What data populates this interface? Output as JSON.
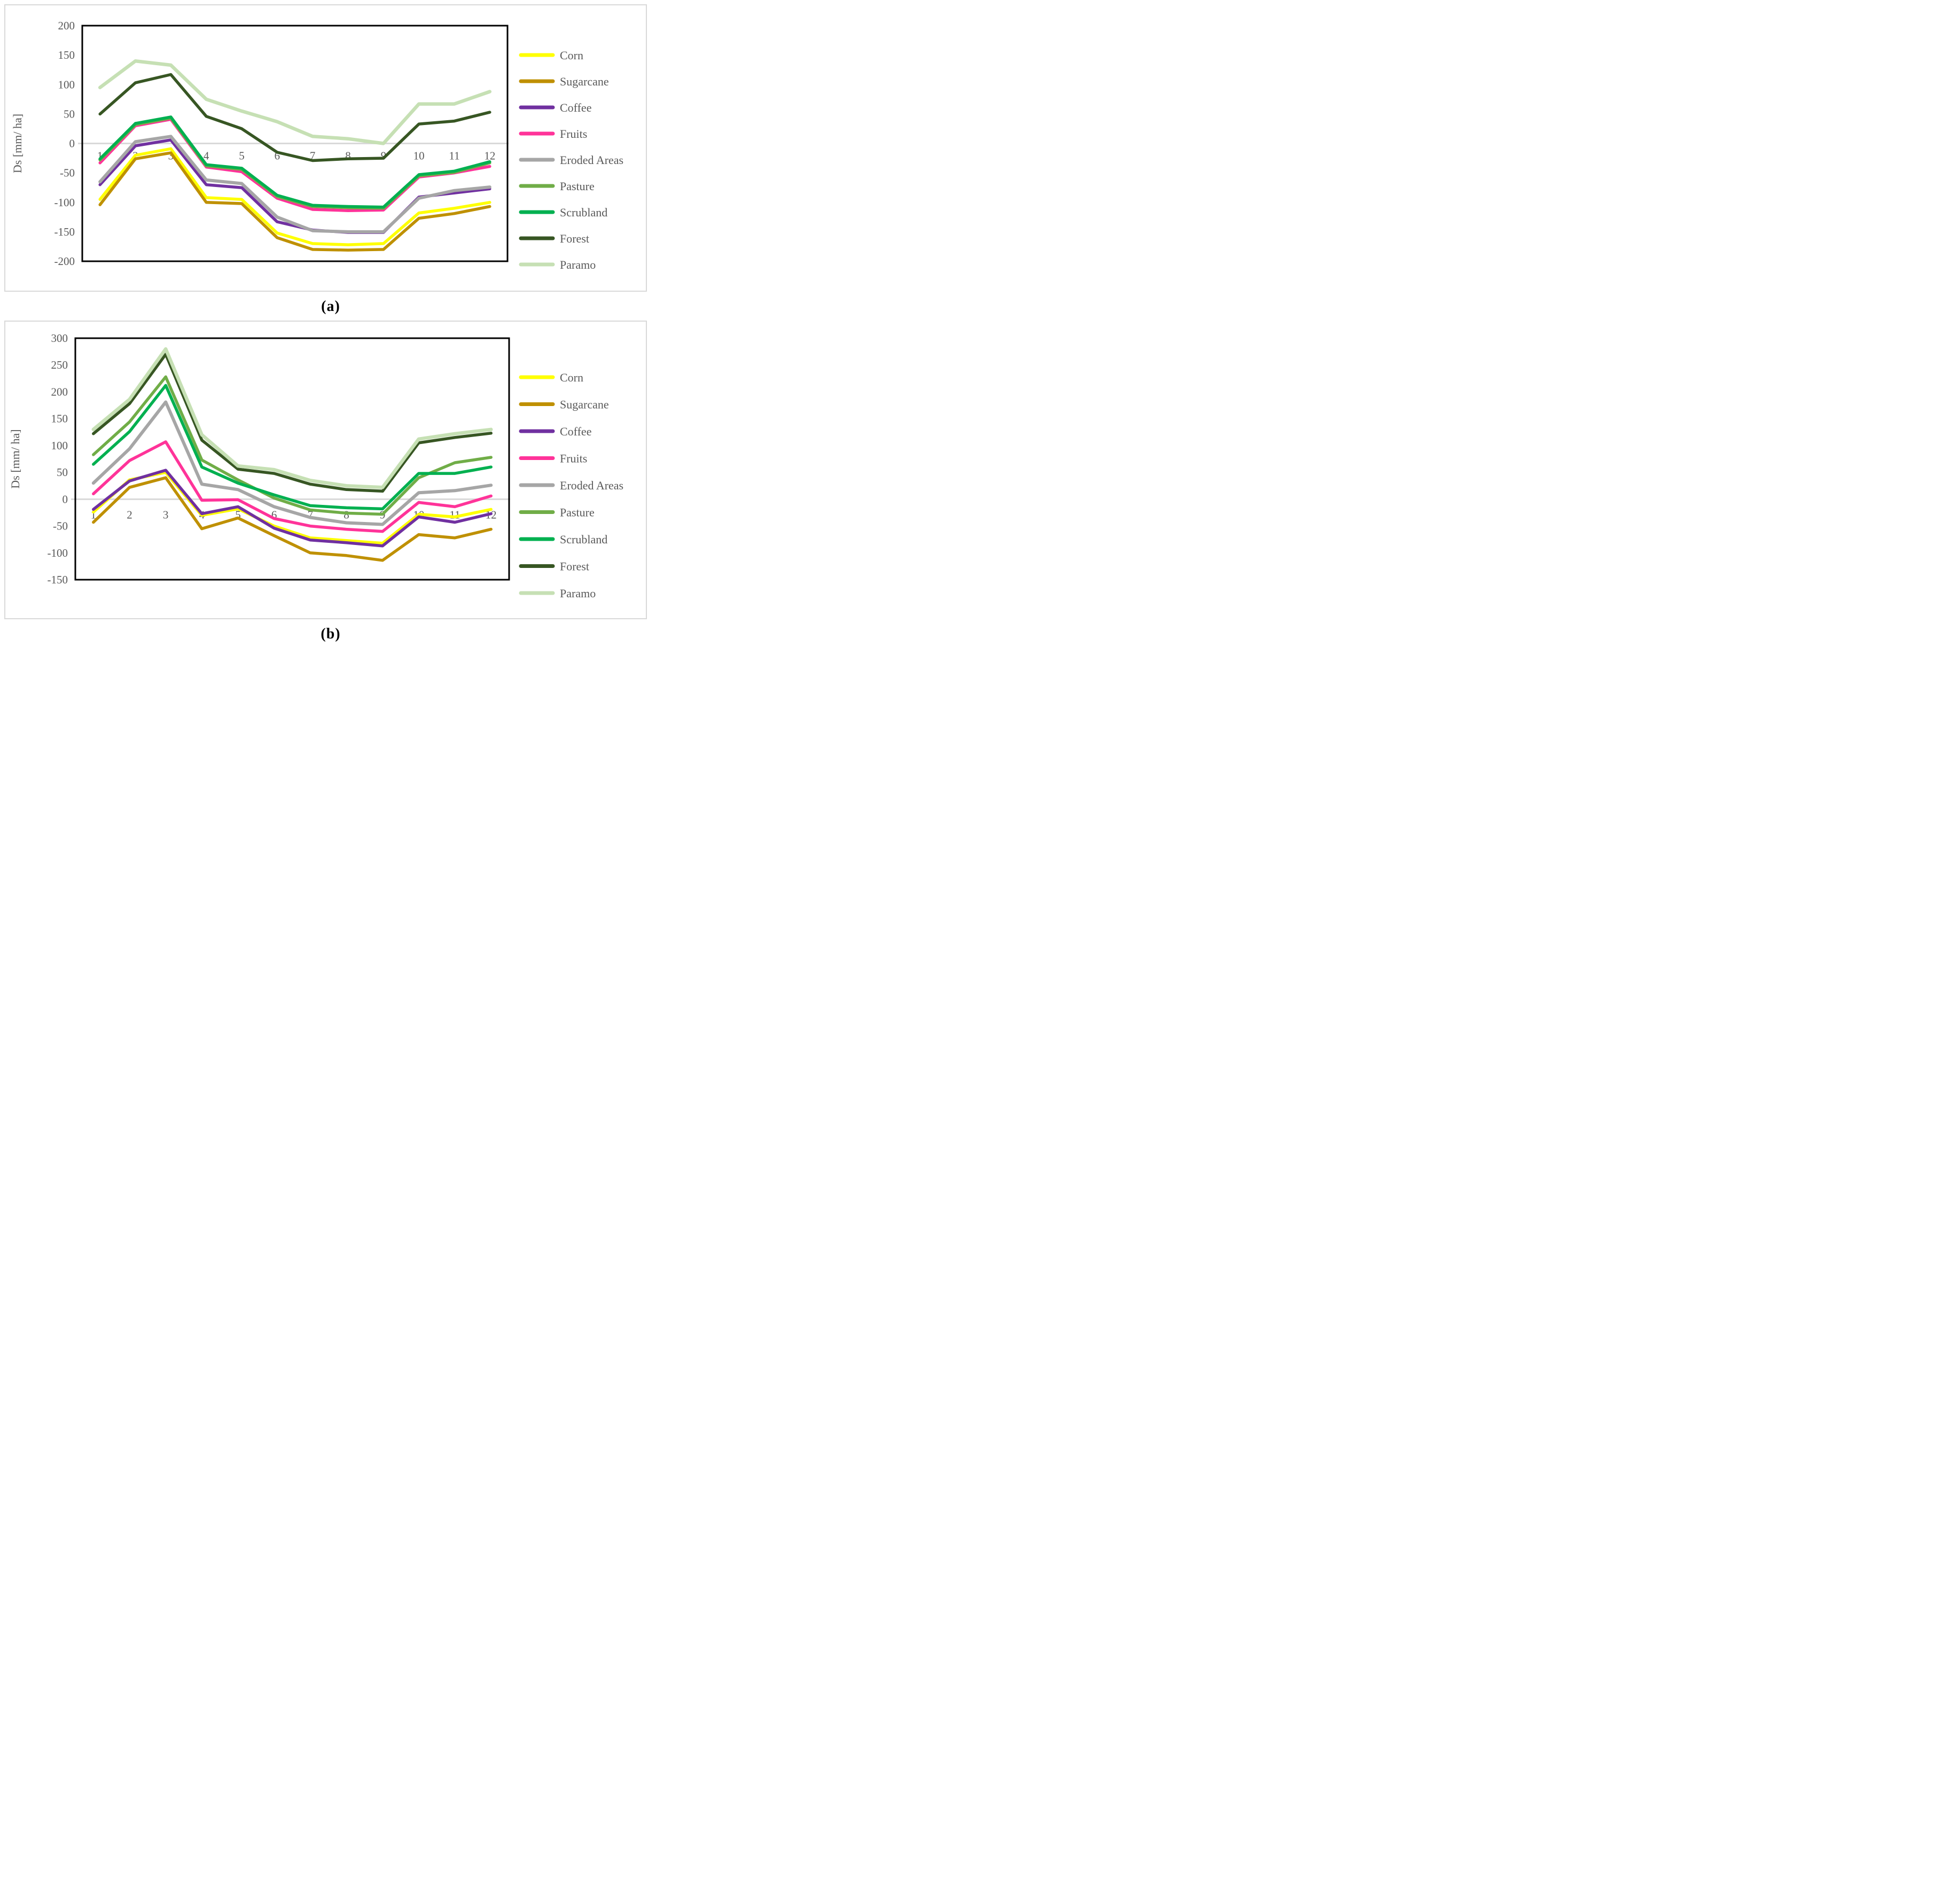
{
  "captions": {
    "a": "(a)",
    "b": "(b)"
  },
  "colors": {
    "plot_border": "#000000",
    "zero_gridline": "#d9d9d9",
    "panel_border": "#d9d9d9",
    "axis_text": "#595959",
    "caption_text": "#000000"
  },
  "chart_data": [
    {
      "id": "a",
      "type": "line",
      "ylabel": "Ds [mm/ ha]",
      "x": [
        1,
        2,
        3,
        4,
        5,
        6,
        7,
        8,
        9,
        10,
        11,
        12
      ],
      "ylim": [
        -200,
        200
      ],
      "yticks": [
        200,
        150,
        100,
        50,
        0,
        -50,
        -100,
        -150,
        -200
      ],
      "grid": "zero-line-only",
      "legend_position": "right",
      "series": [
        {
          "name": "Corn",
          "color": "#ffff00",
          "values": [
            -95,
            -20,
            -9,
            -92,
            -95,
            -152,
            -170,
            -172,
            -170,
            -118,
            -110,
            -100
          ]
        },
        {
          "name": "Sugarcane",
          "color": "#bf9000",
          "values": [
            -104,
            -26,
            -16,
            -100,
            -102,
            -160,
            -180,
            -181,
            -180,
            -127,
            -119,
            -107
          ]
        },
        {
          "name": "Coffee",
          "color": "#7030a0",
          "values": [
            -70,
            -4,
            6,
            -70,
            -75,
            -133,
            -147,
            -151,
            -151,
            -91,
            -84,
            -77
          ]
        },
        {
          "name": "Fruits",
          "color": "#ff3399",
          "values": [
            -33,
            30,
            41,
            -40,
            -48,
            -93,
            -112,
            -114,
            -113,
            -57,
            -50,
            -39
          ]
        },
        {
          "name": "Eroded Areas",
          "color": "#a6a6a6",
          "values": [
            -65,
            3,
            12,
            -62,
            -68,
            -125,
            -148,
            -150,
            -150,
            -93,
            -80,
            -74
          ]
        },
        {
          "name": "Pasture",
          "color": "#70ad47",
          "values": [
            -28,
            32,
            43,
            -38,
            -44,
            -90,
            -107,
            -109,
            -110,
            -55,
            -49,
            -33
          ]
        },
        {
          "name": "Scrubland",
          "color": "#00b050",
          "values": [
            -26,
            34,
            45,
            -36,
            -42,
            -88,
            -105,
            -107,
            -108,
            -53,
            -47,
            -31
          ]
        },
        {
          "name": "Forest",
          "color": "#375623",
          "values": [
            50,
            103,
            117,
            46,
            25,
            -15,
            -29,
            -26,
            -25,
            33,
            38,
            53
          ]
        },
        {
          "name": "Paramo",
          "color": "#c6e0b4",
          "values": [
            95,
            140,
            133,
            75,
            55,
            37,
            12,
            8,
            0,
            67,
            67,
            88
          ]
        }
      ]
    },
    {
      "id": "b",
      "type": "line",
      "ylabel": "Ds [mm/ ha]",
      "x": [
        1,
        2,
        3,
        4,
        5,
        6,
        7,
        8,
        9,
        10,
        11,
        12
      ],
      "ylim": [
        -150,
        300
      ],
      "yticks": [
        300,
        250,
        200,
        150,
        100,
        50,
        0,
        -50,
        -100,
        -150
      ],
      "grid": "zero-line-only",
      "legend_position": "right",
      "series": [
        {
          "name": "Corn",
          "color": "#ffff00",
          "values": [
            -24,
            36,
            50,
            -30,
            -18,
            -50,
            -72,
            -77,
            -82,
            -28,
            -33,
            -19
          ]
        },
        {
          "name": "Sugarcane",
          "color": "#bf9000",
          "values": [
            -43,
            22,
            40,
            -55,
            -35,
            -68,
            -100,
            -105,
            -114,
            -66,
            -72,
            -56
          ]
        },
        {
          "name": "Coffee",
          "color": "#7030a0",
          "values": [
            -19,
            34,
            54,
            -27,
            -14,
            -54,
            -76,
            -81,
            -87,
            -33,
            -43,
            -27
          ]
        },
        {
          "name": "Fruits",
          "color": "#ff3399",
          "values": [
            10,
            72,
            107,
            -2,
            -1,
            -36,
            -50,
            -56,
            -60,
            -6,
            -14,
            6
          ]
        },
        {
          "name": "Eroded Areas",
          "color": "#a6a6a6",
          "values": [
            30,
            94,
            181,
            28,
            18,
            -14,
            -34,
            -44,
            -47,
            12,
            16,
            26
          ]
        },
        {
          "name": "Pasture",
          "color": "#70ad47",
          "values": [
            83,
            144,
            228,
            73,
            36,
            2,
            -20,
            -26,
            -28,
            40,
            68,
            78
          ]
        },
        {
          "name": "Scrubland",
          "color": "#00b050",
          "values": [
            65,
            126,
            212,
            60,
            30,
            8,
            -12,
            -16,
            -18,
            48,
            48,
            60
          ]
        },
        {
          "name": "Forest",
          "color": "#375623",
          "values": [
            122,
            178,
            270,
            110,
            56,
            48,
            28,
            18,
            15,
            105,
            115,
            123
          ]
        },
        {
          "name": "Paramo",
          "color": "#c6e0b4",
          "values": [
            130,
            186,
            280,
            120,
            62,
            55,
            35,
            25,
            22,
            112,
            122,
            130
          ]
        }
      ]
    }
  ]
}
